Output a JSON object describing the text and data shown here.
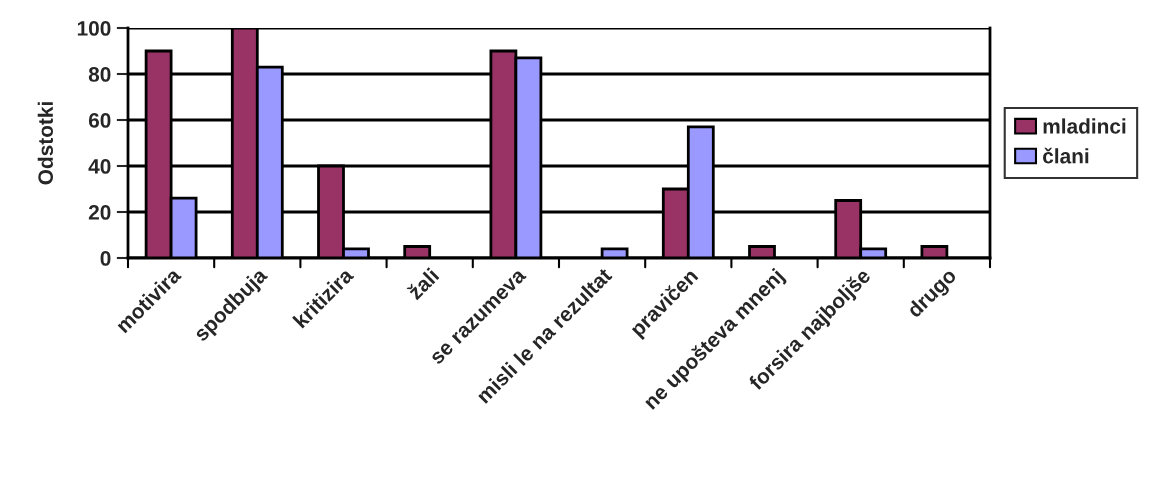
{
  "chart_data": {
    "type": "bar",
    "ylabel": "Odstotki",
    "categories": [
      "motivira",
      "spodbuja",
      "kritizira",
      "žali",
      "se razumeva",
      "misli le na rezultat",
      "pravičen",
      "ne upošteva mnenj",
      "forsira najboljše",
      "drugo"
    ],
    "series": [
      {
        "name": "mladinci",
        "color": "#993366",
        "values": [
          90,
          100,
          40,
          5,
          90,
          null,
          30,
          5,
          25,
          5
        ]
      },
      {
        "name": "člani",
        "color": "#9999ff",
        "values": [
          26,
          83,
          4,
          null,
          87,
          4,
          57,
          null,
          4,
          null
        ]
      }
    ],
    "ylim": [
      0,
      100
    ],
    "yticks": [
      0,
      20,
      40,
      60,
      80,
      100
    ],
    "grid": "y",
    "legend": "right"
  }
}
